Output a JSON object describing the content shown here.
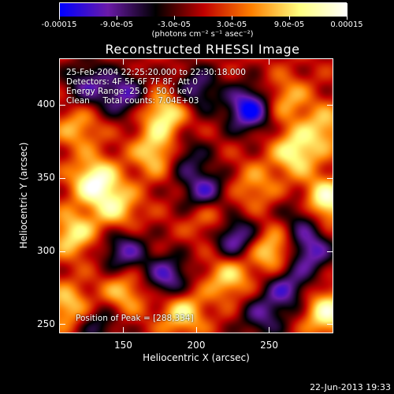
{
  "chart_data": {
    "type": "heatmap",
    "title": "Reconstructed RHESSI Image",
    "xlabel": "Heliocentric X (arcsec)",
    "ylabel": "Heliocentric Y (arcsec)",
    "xlim": [
      106,
      294
    ],
    "ylim": [
      244,
      432
    ],
    "xticks": [
      150,
      200,
      250
    ],
    "yticks": [
      250,
      300,
      350,
      400
    ],
    "colorbar": {
      "range": [
        -0.00015,
        0.00015
      ],
      "tick_labels": [
        "-0.00015",
        "-9.0e-05",
        "-3.0e-05",
        "3.0e-05",
        "9.0e-05",
        "0.00015"
      ],
      "tick_values": [
        -0.00015,
        -9e-05,
        -3e-05,
        3e-05,
        9e-05,
        0.00015
      ],
      "unit_label": "(photons cm⁻² s⁻¹ asec⁻²)",
      "colors": [
        "#0000ff",
        "#6a1aa8",
        "#000000",
        "#c00000",
        "#ff8000",
        "#ffff80",
        "#ffffff"
      ]
    },
    "annotations": [
      "25-Feb-2004 22:25:20.000 to 22:30:18.000",
      "Detectors: 4F 5F 6F 7F 8F, Att 0",
      "Energy Range: 25.0 - 50.0 keV",
      "Clean     Total counts: 7.04E+03"
    ],
    "peak_text": "Position of Peak = [288,334]",
    "peak": [
      288,
      334
    ],
    "hotspots": [
      {
        "x": 130,
        "y": 348,
        "value": 0.00014
      },
      {
        "x": 288,
        "y": 334,
        "value": 0.00015
      },
      {
        "x": 178,
        "y": 395,
        "value": 0.00011
      },
      {
        "x": 172,
        "y": 368,
        "value": 0.0001
      },
      {
        "x": 268,
        "y": 368,
        "value": 0.00011
      },
      {
        "x": 115,
        "y": 312,
        "value": 0.0001
      },
      {
        "x": 145,
        "y": 330,
        "value": 9e-05
      },
      {
        "x": 290,
        "y": 258,
        "value": 0.00012
      },
      {
        "x": 252,
        "y": 300,
        "value": 0.0001
      },
      {
        "x": 210,
        "y": 325,
        "value": 8e-05
      },
      {
        "x": 190,
        "y": 258,
        "value": 0.0001
      },
      {
        "x": 222,
        "y": 282,
        "value": 9e-05
      },
      {
        "x": 150,
        "y": 272,
        "value": 8e-05
      },
      {
        "x": 112,
        "y": 262,
        "value": 9e-05
      },
      {
        "x": 262,
        "y": 405,
        "value": 7e-05
      },
      {
        "x": 288,
        "y": 385,
        "value": 8e-05
      },
      {
        "x": 240,
        "y": 345,
        "value": 6e-05
      },
      {
        "x": 118,
        "y": 385,
        "value": 7e-05
      },
      {
        "x": 236,
        "y": 398,
        "value": -0.00015
      },
      {
        "x": 206,
        "y": 340,
        "value": -0.00012
      },
      {
        "x": 180,
        "y": 282,
        "value": -0.00011
      },
      {
        "x": 226,
        "y": 310,
        "value": -0.00012
      },
      {
        "x": 278,
        "y": 300,
        "value": -0.00011
      },
      {
        "x": 150,
        "y": 408,
        "value": -0.0001
      },
      {
        "x": 125,
        "y": 415,
        "value": -9e-05
      },
      {
        "x": 262,
        "y": 275,
        "value": -0.0001
      },
      {
        "x": 200,
        "y": 412,
        "value": -9e-05
      },
      {
        "x": 150,
        "y": 300,
        "value": -0.0001
      },
      {
        "x": 275,
        "y": 325,
        "value": -8e-05
      },
      {
        "x": 245,
        "y": 255,
        "value": -8e-05
      },
      {
        "x": 132,
        "y": 250,
        "value": -7e-05
      },
      {
        "x": 192,
        "y": 365,
        "value": -7e-05
      }
    ]
  },
  "timestamp": "22-Jun-2013 19:33"
}
